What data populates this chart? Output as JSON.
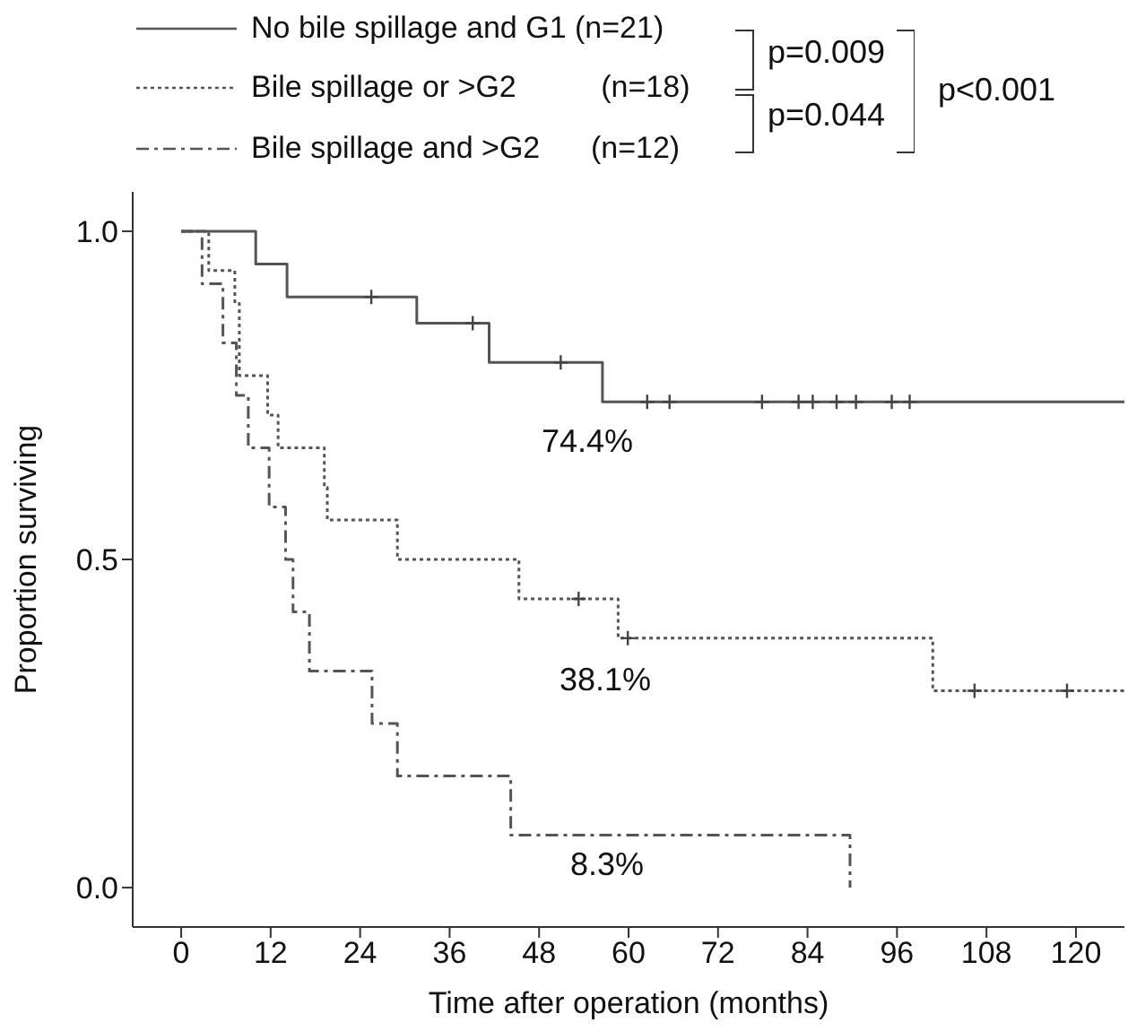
{
  "chart_data": {
    "type": "step",
    "xlabel": "Time after operation (months)",
    "ylabel": "Proportion surviving",
    "xlim": [
      -6.5,
      126.5
    ],
    "xticks": [
      0,
      12,
      24,
      36,
      48,
      60,
      72,
      84,
      96,
      108,
      120
    ],
    "ylim": [
      -0.06,
      1.06
    ],
    "yticks": [
      {
        "value": 0,
        "label": "0.0"
      },
      0.5,
      {
        "value": 1,
        "label": "1.0"
      }
    ],
    "grid": false,
    "legend": "top",
    "series": [
      {
        "name": "No bile spillage and G1 (n=21)",
        "color": "#555555",
        "line_style": "solid",
        "marker": "none",
        "x": [
          0,
          10.0,
          14.2,
          31.6,
          41.3,
          56.5,
          126.5
        ],
        "values": [
          1,
          0.95,
          0.9,
          0.86,
          0.8,
          0.74,
          0.74
        ]
      },
      {
        "name": "Bile spillage or >G2          (n=18)",
        "color": "#555555",
        "line_style": "dotted",
        "marker": "none",
        "x": [
          0,
          3.7,
          7.2,
          7.8,
          11.6,
          13.0,
          19.2,
          19.6,
          29.0,
          45.3,
          58.6,
          100.8,
          126.5
        ],
        "values": [
          1,
          0.94,
          0.89,
          0.78,
          0.72,
          0.67,
          0.61,
          0.56,
          0.5,
          0.44,
          0.38,
          0.3,
          0.3
        ]
      },
      {
        "name": "Bile spillage and >G2      (n=12)",
        "color": "#555555",
        "line_style": "dashed",
        "marker": "none",
        "x": [
          0,
          2.8,
          5.6,
          7.4,
          9.0,
          11.8,
          14.0,
          15.0,
          17.2,
          25.6,
          29.0,
          44.2,
          89.7
        ],
        "values": [
          1,
          0.92,
          0.83,
          0.75,
          0.67,
          0.58,
          0.5,
          0.42,
          0.33,
          0.25,
          0.17,
          0.08,
          0
        ]
      },
      {
        "type": "scatter",
        "color": "#444444",
        "marker": "cross",
        "x": [
          25.5,
          39.1,
          50.9,
          62.5,
          65.5,
          77.9,
          82.8,
          84.7,
          87.9,
          90.5,
          95.3,
          97.7
        ],
        "values": [
          0.9,
          0.86,
          0.8,
          0.74,
          0.74,
          0.74,
          0.74,
          0.74,
          0.74,
          0.74,
          0.74,
          0.74
        ]
      },
      {
        "type": "scatter",
        "color": "#444444",
        "marker": "cross",
        "x": [
          53.3,
          59.9,
          106.4,
          118.8
        ],
        "values": [
          0.44,
          0.38,
          0.3,
          0.3
        ]
      }
    ],
    "annotations": [
      "p=0.009",
      "p=0.044",
      "p<0.001",
      "74.4%",
      "38.1%",
      "8.3%"
    ]
  }
}
